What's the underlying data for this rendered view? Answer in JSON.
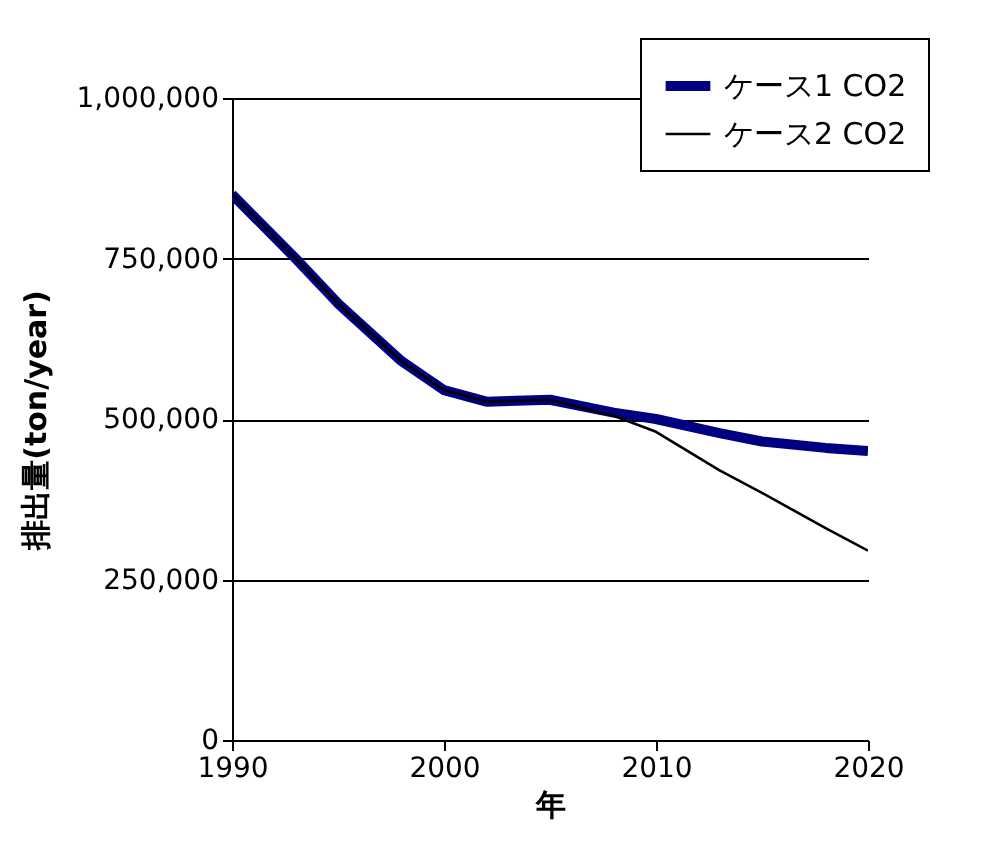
{
  "chart_data": {
    "type": "line",
    "xlabel": "年",
    "ylabel": "排出量(ton/year)",
    "x": [
      1990,
      1993,
      1995,
      1998,
      2000,
      2002,
      2005,
      2008,
      2010,
      2013,
      2015,
      2018,
      2020
    ],
    "series": [
      {
        "name": "ケース1 CO2",
        "color": "#000080",
        "values": [
          850000,
          750000,
          680000,
          590000,
          545000,
          527000,
          530000,
          510000,
          500000,
          478000,
          465000,
          455000,
          450000
        ]
      },
      {
        "name": "ケース2 CO2",
        "color": "#000000",
        "values": [
          850000,
          750000,
          680000,
          590000,
          545000,
          527000,
          530000,
          505000,
          480000,
          420000,
          385000,
          330000,
          295000
        ]
      }
    ],
    "xlim": [
      1990,
      2020
    ],
    "xticks": [
      1990,
      2000,
      2010,
      2020
    ],
    "ylim": [
      0,
      1000000
    ],
    "yticks": [
      0,
      {
        "value": 250000,
        "label": "250,000"
      },
      {
        "value": 500000,
        "label": "500,000"
      },
      {
        "value": 750000,
        "label": "750,000"
      },
      {
        "value": 1000000,
        "label": "1,000,000"
      }
    ],
    "grid": "y",
    "legend": "top right"
  }
}
